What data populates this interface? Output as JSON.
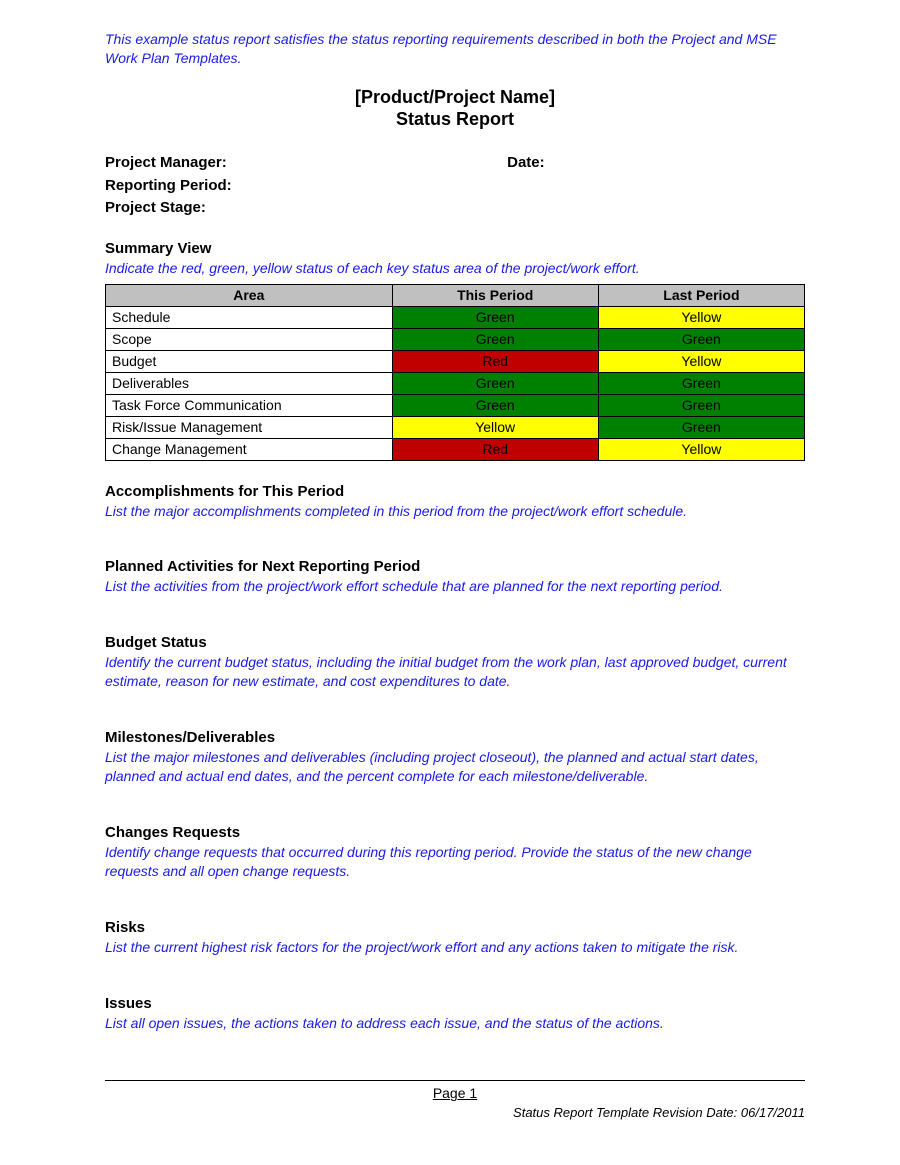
{
  "colors": {
    "instruction_text": "#1a1ae6",
    "body_text": "#000000",
    "header_bg": "#c0c0c0",
    "border": "#000000",
    "page_bg": "#ffffff",
    "status_green": "#008000",
    "status_yellow": "#ffff00",
    "status_red": "#c00000"
  },
  "typography": {
    "base_family": "Arial",
    "title_size_pt": 14,
    "heading_size_pt": 11,
    "body_size_pt": 10
  },
  "intro_note": "This example status report satisfies the status reporting requirements described in both the Project and MSE Work Plan Templates.",
  "title_line1": "[Product/Project Name]",
  "title_line2": "Status Report",
  "meta": {
    "project_manager_label": "Project Manager:",
    "date_label": "Date:",
    "reporting_period_label": "Reporting Period:",
    "project_stage_label": "Project Stage:"
  },
  "summary": {
    "heading": "Summary View",
    "instruction": "Indicate the red, green, yellow status of each key status area of the project/work effort.",
    "columns": {
      "area": "Area",
      "this_period": "This Period",
      "last_period": "Last Period"
    },
    "rows": [
      {
        "area": "Schedule",
        "this": {
          "label": "Green",
          "bg": "#008000",
          "fg": "#000000"
        },
        "last": {
          "label": "Yellow",
          "bg": "#ffff00",
          "fg": "#000000"
        }
      },
      {
        "area": "Scope",
        "this": {
          "label": "Green",
          "bg": "#008000",
          "fg": "#000000"
        },
        "last": {
          "label": "Green",
          "bg": "#008000",
          "fg": "#000000"
        }
      },
      {
        "area": "Budget",
        "this": {
          "label": "Red",
          "bg": "#c00000",
          "fg": "#000000"
        },
        "last": {
          "label": "Yellow",
          "bg": "#ffff00",
          "fg": "#000000"
        }
      },
      {
        "area": "Deliverables",
        "this": {
          "label": "Green",
          "bg": "#008000",
          "fg": "#000000"
        },
        "last": {
          "label": "Green",
          "bg": "#008000",
          "fg": "#000000"
        }
      },
      {
        "area": "Task Force Communication",
        "this": {
          "label": "Green",
          "bg": "#008000",
          "fg": "#000000"
        },
        "last": {
          "label": "Green",
          "bg": "#008000",
          "fg": "#000000"
        }
      },
      {
        "area": "Risk/Issue Management",
        "this": {
          "label": "Yellow",
          "bg": "#ffff00",
          "fg": "#000000"
        },
        "last": {
          "label": "Green",
          "bg": "#008000",
          "fg": "#000000"
        }
      },
      {
        "area": "Change Management",
        "this": {
          "label": "Red",
          "bg": "#c00000",
          "fg": "#000000"
        },
        "last": {
          "label": "Yellow",
          "bg": "#ffff00",
          "fg": "#000000"
        }
      }
    ]
  },
  "sections": [
    {
      "heading": "Accomplishments for This Period",
      "instruction": "List the major accomplishments completed in this period from the project/work effort schedule."
    },
    {
      "heading": "Planned Activities for Next Reporting Period",
      "instruction": "List the activities from the project/work effort schedule that are planned for the next reporting period."
    },
    {
      "heading": "Budget Status",
      "instruction": "Identify the current budget status, including the initial budget from the work plan, last approved budget, current estimate, reason for new estimate, and cost expenditures to date."
    },
    {
      "heading": "Milestones/Deliverables",
      "instruction": "List the major milestones and deliverables (including project closeout), the planned and actual start dates, planned and actual end dates, and the percent complete for each milestone/deliverable."
    },
    {
      "heading": "Changes Requests",
      "instruction": "Identify change requests that occurred during this reporting period. Provide the status of the new change requests and all open change requests."
    },
    {
      "heading": "Risks",
      "instruction": "List the current highest risk factors for the project/work effort and any actions taken to mitigate the risk."
    },
    {
      "heading": "Issues",
      "instruction": "List all open issues, the actions taken to address each issue, and the status of the actions."
    }
  ],
  "footer": {
    "page_label": "Page 1",
    "revision": "Status Report Template Revision Date: 06/17/2011"
  }
}
